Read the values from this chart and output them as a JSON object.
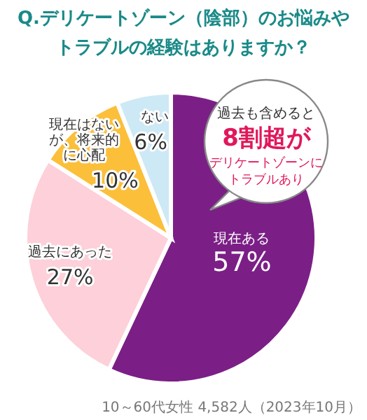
{
  "chart_data": {
    "type": "pie",
    "title": "Q.デリケートゾーン（陰部）のお悩みやトラブルの経験はありますか？",
    "categories": [
      "現在ある",
      "過去にあった",
      "現在はないが、将来的に心配",
      "ない"
    ],
    "values": [
      57,
      27,
      10,
      6
    ],
    "value_labels": [
      "57%",
      "27%",
      "10%",
      "6%"
    ],
    "colors": [
      "#7b1f86",
      "#fdd0da",
      "#fbbf3a",
      "#cde9f5"
    ],
    "annotations": [
      "過去も含めると",
      "8割超が",
      "デリケートゾーンにトラブルあり",
      "10～60代女性 4,582人（2023年10月）"
    ]
  }
}
